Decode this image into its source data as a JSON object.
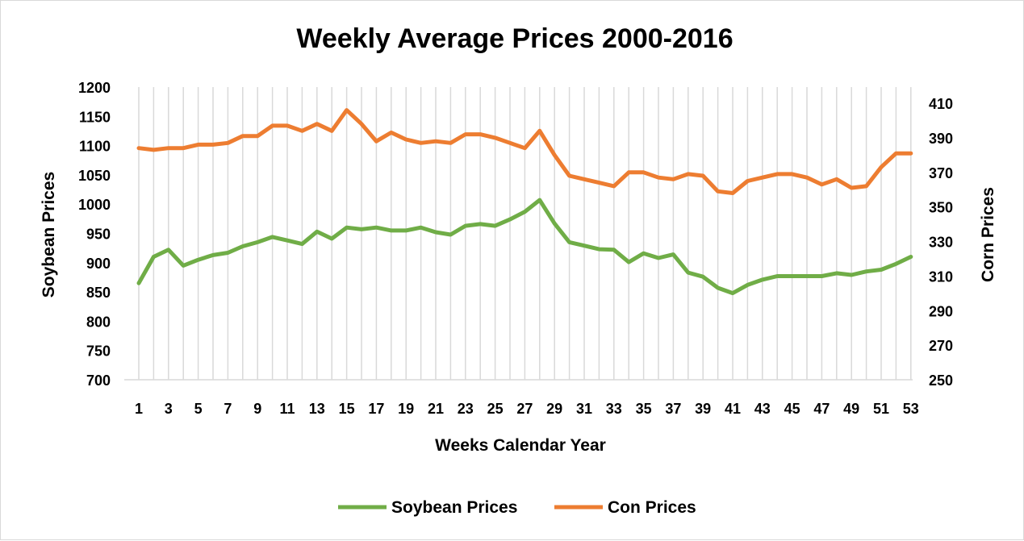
{
  "chart_data": {
    "type": "line",
    "title": "Weekly Average Prices 2000-2016",
    "xlabel": "Weeks Calendar  Year",
    "ylabel_left": "Soybean  Prices",
    "ylabel_right": "Corn Prices",
    "x": [
      1,
      2,
      3,
      4,
      5,
      6,
      7,
      8,
      9,
      10,
      11,
      12,
      13,
      14,
      15,
      16,
      17,
      18,
      19,
      20,
      21,
      22,
      23,
      24,
      25,
      26,
      27,
      28,
      29,
      30,
      31,
      32,
      33,
      34,
      35,
      36,
      37,
      38,
      39,
      40,
      41,
      42,
      43,
      44,
      45,
      46,
      47,
      48,
      49,
      50,
      51,
      52,
      53
    ],
    "x_tick_labels": [
      "1",
      "3",
      "5",
      "7",
      "9",
      "11",
      "13",
      "15",
      "17",
      "19",
      "21",
      "23",
      "25",
      "27",
      "29",
      "31",
      "33",
      "35",
      "37",
      "39",
      "41",
      "43",
      "45",
      "47",
      "49",
      "51",
      "53"
    ],
    "y_left_lim": [
      700,
      1200
    ],
    "y_left_ticks": [
      "700",
      "750",
      "800",
      "850",
      "900",
      "950",
      "1000",
      "1050",
      "1100",
      "1150",
      "1200"
    ],
    "y_right_lim": [
      250,
      410
    ],
    "y_right_ticks": [
      "250",
      "270",
      "290",
      "310",
      "330",
      "350",
      "370",
      "390",
      "410"
    ],
    "grid": "vertical",
    "legend_position": "bottom",
    "series": [
      {
        "name": "Soybean Prices",
        "axis": "left",
        "color": "#70ad47",
        "values": [
          865,
          910,
          922,
          895,
          905,
          913,
          917,
          928,
          935,
          944,
          938,
          932,
          953,
          941,
          960,
          957,
          960,
          955,
          955,
          960,
          952,
          948,
          963,
          966,
          963,
          974,
          987,
          1007,
          967,
          935,
          929,
          923,
          922,
          901,
          916,
          908,
          914,
          883,
          876,
          857,
          848,
          862,
          871,
          877,
          877,
          877,
          877,
          882,
          879,
          885,
          888,
          898,
          910
        ]
      },
      {
        "name": "Con Prices",
        "axis": "right",
        "color": "#ed7d31",
        "values": [
          384,
          383,
          384,
          384,
          386,
          386,
          387,
          391,
          391,
          397,
          397,
          394,
          398,
          394,
          406,
          398,
          388,
          393,
          389,
          387,
          388,
          387,
          392,
          392,
          390,
          387,
          384,
          394,
          380,
          368,
          366,
          364,
          362,
          370,
          370,
          367,
          366,
          369,
          368,
          359,
          358,
          365,
          367,
          369,
          369,
          367,
          363,
          366,
          361,
          362,
          373,
          381,
          381
        ]
      }
    ]
  }
}
